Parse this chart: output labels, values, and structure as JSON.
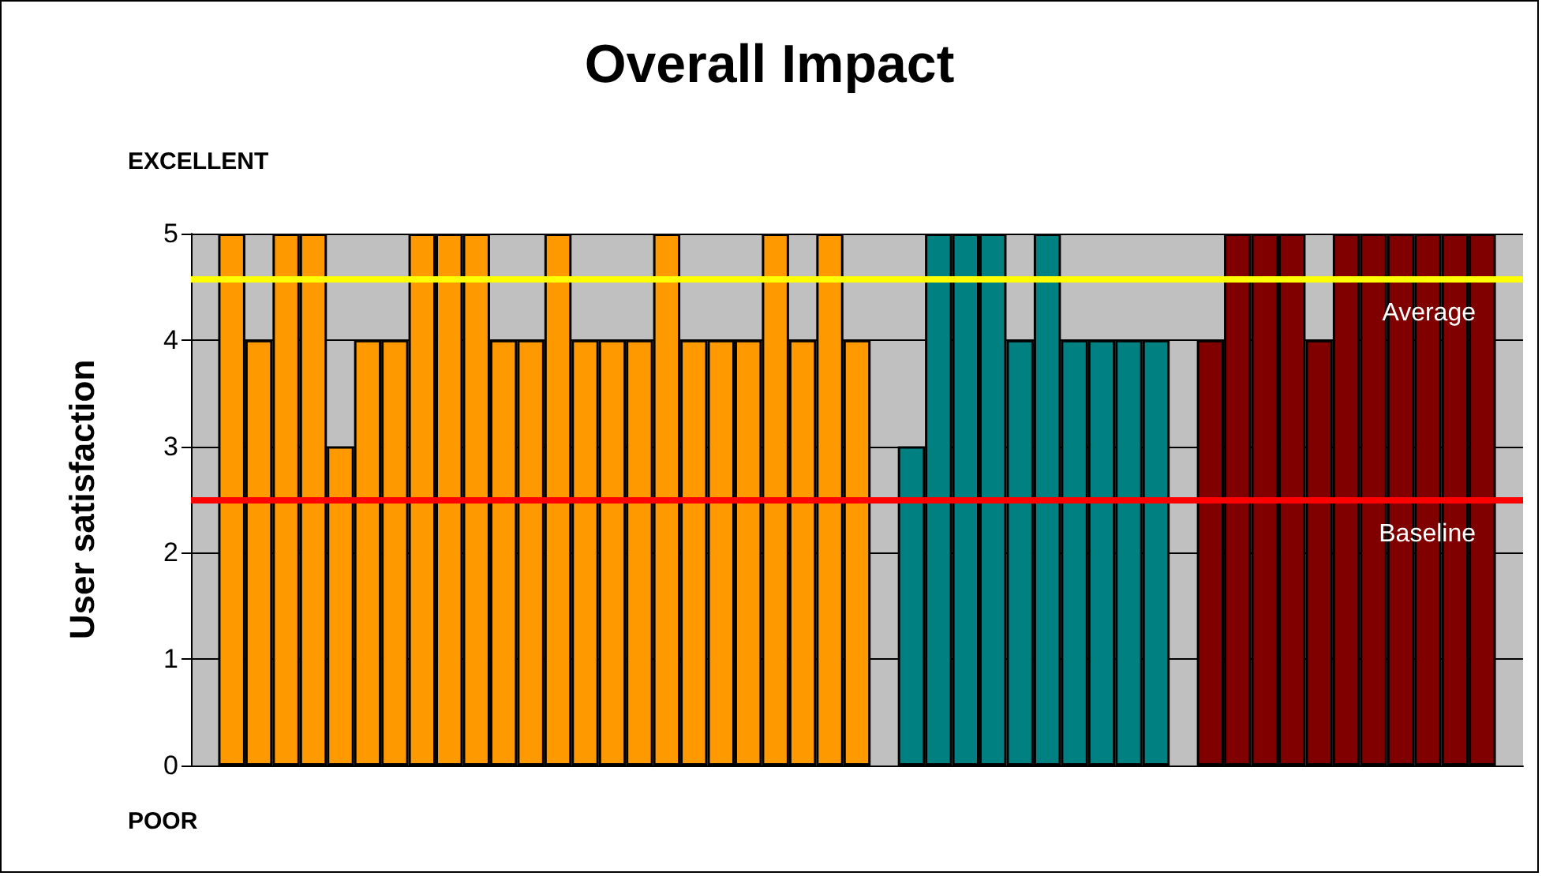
{
  "chart_data": {
    "type": "bar",
    "title": "Overall Impact",
    "ylabel": "User satisfaction",
    "annotations": [
      "EXCELLENT",
      "POOR"
    ],
    "categories": [
      null,
      null,
      null,
      null,
      null,
      null,
      null,
      null,
      null,
      null,
      null,
      null,
      null,
      null,
      null,
      null,
      null,
      null,
      null,
      null,
      null,
      null,
      null,
      null,
      null,
      null,
      null,
      null,
      null,
      null,
      null,
      null,
      null,
      null,
      null,
      null,
      null,
      null,
      null,
      null,
      null,
      null,
      null,
      null,
      null,
      null,
      null,
      null,
      null
    ],
    "series": [
      {
        "color": "#ff9900",
        "values": [
          null,
          5,
          4,
          5,
          5,
          3,
          4,
          4,
          5,
          5,
          5,
          4,
          4,
          5,
          4,
          4,
          4,
          5,
          4,
          4,
          4,
          5,
          4,
          5,
          4,
          null,
          null,
          null,
          null,
          null,
          null,
          null,
          null,
          null,
          null,
          null,
          null,
          null,
          null,
          null,
          null,
          null,
          null,
          null,
          null,
          null,
          null,
          null,
          null
        ]
      },
      {
        "color": "#008080",
        "values": [
          null,
          null,
          null,
          null,
          null,
          null,
          null,
          null,
          null,
          null,
          null,
          null,
          null,
          null,
          null,
          null,
          null,
          null,
          null,
          null,
          null,
          null,
          null,
          null,
          null,
          null,
          3,
          5,
          5,
          5,
          4,
          5,
          4,
          4,
          4,
          4,
          null,
          null,
          null,
          null,
          null,
          null,
          null,
          null,
          null,
          null,
          null,
          null,
          null
        ]
      },
      {
        "color": "#800000",
        "values": [
          null,
          null,
          null,
          null,
          null,
          null,
          null,
          null,
          null,
          null,
          null,
          null,
          null,
          null,
          null,
          null,
          null,
          null,
          null,
          null,
          null,
          null,
          null,
          null,
          null,
          null,
          null,
          null,
          null,
          null,
          null,
          null,
          null,
          null,
          null,
          null,
          null,
          4,
          5,
          5,
          5,
          4,
          5,
          5,
          5,
          5,
          5,
          5,
          null
        ]
      }
    ],
    "ylim": [
      0,
      5
    ],
    "yticks": [
      0,
      1,
      2,
      3,
      4,
      5
    ],
    "grid": "y",
    "ref_lines": [
      {
        "axis": "y",
        "value": 4.58,
        "label": "Average",
        "color": "#ffff00"
      },
      {
        "axis": "y",
        "value": 2.5,
        "label": "Baseline",
        "color": "#ff0000"
      }
    ]
  }
}
